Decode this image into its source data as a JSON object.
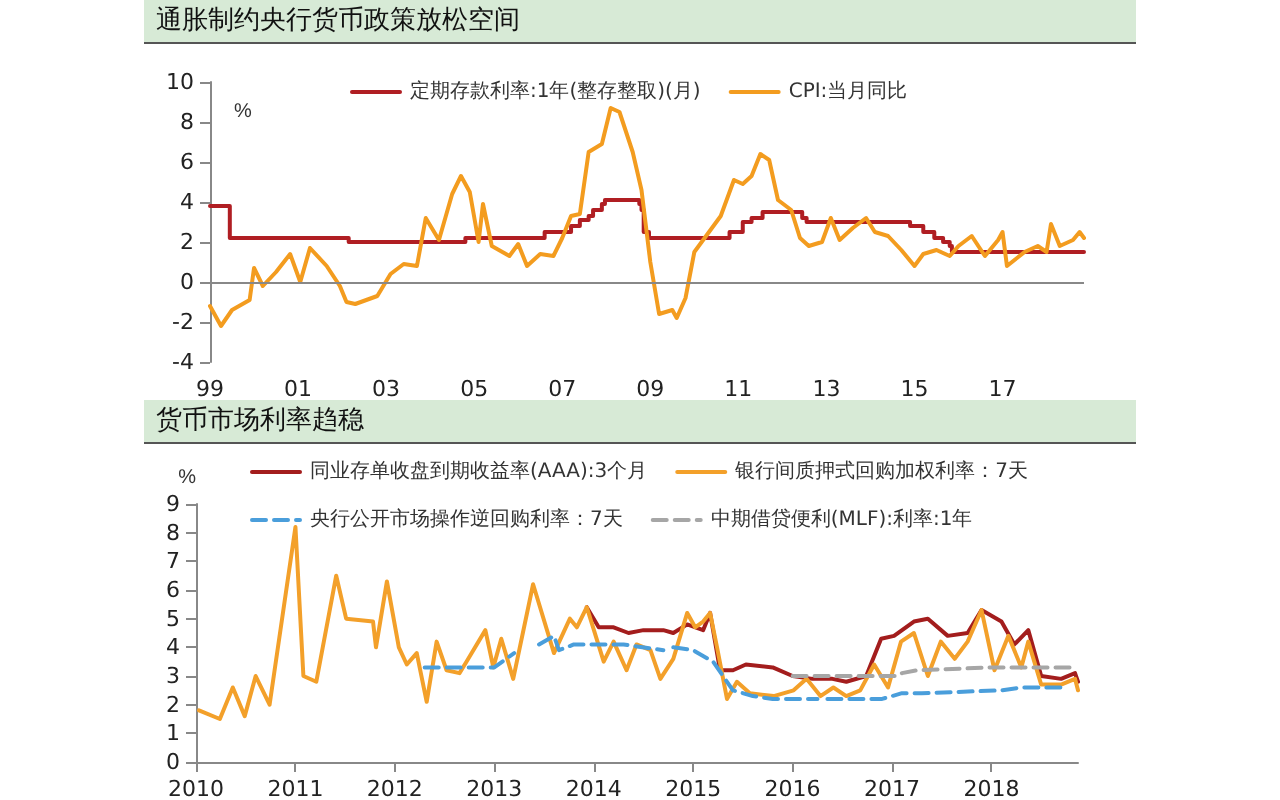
{
  "chart_data": [
    {
      "type": "line",
      "title": "通胀制约央行货币政策放松空间",
      "ylabel": "%",
      "xlim": [
        1999,
        2018.85
      ],
      "xticks": [
        {
          "value": 1999,
          "label": "99"
        },
        {
          "value": 2001,
          "label": "01"
        },
        {
          "value": 2003,
          "label": "03"
        },
        {
          "value": 2005,
          "label": "05"
        },
        {
          "value": 2007,
          "label": "07"
        },
        {
          "value": 2009,
          "label": "09"
        },
        {
          "value": 2011,
          "label": "11"
        },
        {
          "value": 2013,
          "label": "13"
        },
        {
          "value": 2015,
          "label": "15"
        },
        {
          "value": 2017,
          "label": "17"
        }
      ],
      "ylim": [
        -4,
        10
      ],
      "yticks": [
        -4,
        -2,
        0,
        2,
        4,
        6,
        8,
        10
      ],
      "ref_lines": [
        {
          "axis": "y",
          "value": 0,
          "color": "#888888"
        }
      ],
      "grid": false,
      "legend": "top",
      "marker": "none",
      "series": [
        {
          "name": "定期存款利率:1年(整存整取)(月)",
          "type": "step",
          "color": "#b01e23",
          "x": [
            1999.0,
            1999.45,
            2002.15,
            2004.8,
            2006.6,
            2007.2,
            2007.4,
            2007.6,
            2007.7,
            2007.9,
            2007.97,
            2008.75,
            2008.8,
            2008.85,
            2008.97,
            2010.8,
            2011.1,
            2011.3,
            2011.55,
            2012.45,
            2012.55,
            2014.9,
            2015.2,
            2015.45,
            2015.65,
            2015.8,
            2015.85,
            2018.85
          ],
          "values": [
            3.8,
            2.2,
            2.0,
            2.2,
            2.5,
            2.8,
            3.1,
            3.3,
            3.6,
            3.9,
            4.1,
            3.9,
            3.6,
            2.5,
            2.2,
            2.5,
            3.0,
            3.2,
            3.5,
            3.2,
            3.0,
            2.8,
            2.5,
            2.2,
            2.0,
            1.8,
            1.5,
            1.5
          ]
        },
        {
          "name": "CPI:当月同比",
          "color": "#f39c1f",
          "x": [
            1999.0,
            1999.25,
            1999.5,
            1999.9,
            2000.0,
            2000.2,
            2000.5,
            2000.82,
            2001.05,
            2001.27,
            2001.65,
            2001.95,
            2002.1,
            2002.3,
            2002.8,
            2003.1,
            2003.4,
            2003.7,
            2003.9,
            2004.2,
            2004.5,
            2004.7,
            2004.9,
            2005.1,
            2005.2,
            2005.4,
            2005.8,
            2006.0,
            2006.2,
            2006.5,
            2006.8,
            2007.0,
            2007.2,
            2007.4,
            2007.6,
            2007.9,
            2008.1,
            2008.3,
            2008.6,
            2008.8,
            2009.0,
            2009.2,
            2009.5,
            2009.6,
            2009.8,
            2010.0,
            2010.3,
            2010.6,
            2010.9,
            2011.1,
            2011.3,
            2011.5,
            2011.7,
            2011.9,
            2012.2,
            2012.4,
            2012.6,
            2012.9,
            2013.1,
            2013.3,
            2013.6,
            2013.9,
            2014.1,
            2014.4,
            2014.7,
            2015.0,
            2015.2,
            2015.5,
            2015.8,
            2016.0,
            2016.3,
            2016.6,
            2016.9,
            2017.0,
            2017.1,
            2017.5,
            2017.8,
            2018.0,
            2018.1,
            2018.3,
            2018.6,
            2018.75,
            2018.85
          ],
          "values": [
            -1.2,
            -2.2,
            -1.4,
            -0.9,
            0.7,
            -0.2,
            0.5,
            1.4,
            0,
            1.7,
            0.8,
            -0.2,
            -1.0,
            -1.1,
            -0.7,
            0.4,
            0.9,
            0.8,
            3.2,
            2.1,
            4.4,
            5.3,
            4.5,
            2.0,
            3.9,
            1.8,
            1.3,
            1.9,
            0.8,
            1.4,
            1.3,
            2.2,
            3.3,
            3.4,
            6.5,
            6.9,
            8.7,
            8.5,
            6.5,
            4.6,
            1.0,
            -1.6,
            -1.4,
            -1.8,
            -0.8,
            1.5,
            2.4,
            3.3,
            5.1,
            4.9,
            5.3,
            6.4,
            6.1,
            4.1,
            3.6,
            2.2,
            1.8,
            2.0,
            3.2,
            2.1,
            2.7,
            3.2,
            2.5,
            2.3,
            1.6,
            0.8,
            1.4,
            1.6,
            1.3,
            1.8,
            2.3,
            1.3,
            2.1,
            2.5,
            0.8,
            1.5,
            1.8,
            1.5,
            2.9,
            1.8,
            2.1,
            2.5,
            2.2
          ]
        }
      ]
    },
    {
      "type": "line",
      "title": "货币市场利率趋稳",
      "ylabel": "%",
      "xlim": [
        2010,
        2018.87
      ],
      "xticks": [
        2010,
        2011,
        2012,
        2013,
        2014,
        2015,
        2016,
        2017,
        2018
      ],
      "ylim": [
        0,
        9
      ],
      "yticks": [
        0,
        1,
        2,
        3,
        4,
        5,
        6,
        7,
        8,
        9
      ],
      "grid": false,
      "legend": "top",
      "marker": "none",
      "series": [
        {
          "name": "同业存单收盘到期收益率(AAA):3个月",
          "color": "#a31d1d",
          "x": [
            2013.93,
            2014.05,
            2014.2,
            2014.35,
            2014.5,
            2014.7,
            2014.8,
            2014.94,
            2015.1,
            2015.17,
            2015.27,
            2015.4,
            2015.53,
            2015.8,
            2016.0,
            2016.2,
            2016.4,
            2016.54,
            2016.74,
            2016.89,
            2017.02,
            2017.22,
            2017.36,
            2017.56,
            2017.76,
            2017.9,
            2018.1,
            2018.23,
            2018.37,
            2018.5,
            2018.7,
            2018.84,
            2018.87
          ],
          "values": [
            5.4,
            4.7,
            4.7,
            4.5,
            4.6,
            4.6,
            4.5,
            4.8,
            4.6,
            5.2,
            3.2,
            3.2,
            3.4,
            3.3,
            3.0,
            2.9,
            2.9,
            2.8,
            3.0,
            4.3,
            4.4,
            4.9,
            5.0,
            4.4,
            4.5,
            5.3,
            4.9,
            4.1,
            4.6,
            3.0,
            2.9,
            3.1,
            2.8
          ]
        },
        {
          "name": "银行间质押式回购加权利率：7天",
          "color": "#f3a02a",
          "x": [
            2010.03,
            2010.24,
            2010.37,
            2010.49,
            2010.6,
            2010.74,
            2011.0,
            2011.08,
            2011.21,
            2011.41,
            2011.51,
            2011.78,
            2011.81,
            2011.92,
            2012.04,
            2012.12,
            2012.22,
            2012.32,
            2012.42,
            2012.52,
            2012.65,
            2012.72,
            2012.91,
            2012.99,
            2013.07,
            2013.19,
            2013.39,
            2013.6,
            2013.76,
            2013.83,
            2013.93,
            2014.1,
            2014.2,
            2014.33,
            2014.43,
            2014.57,
            2014.67,
            2014.8,
            2014.94,
            2015.02,
            2015.1,
            2015.17,
            2015.24,
            2015.34,
            2015.44,
            2015.57,
            2015.81,
            2016.01,
            2016.14,
            2016.28,
            2016.41,
            2016.54,
            2016.68,
            2016.82,
            2016.96,
            2017.09,
            2017.22,
            2017.36,
            2017.49,
            2017.63,
            2017.76,
            2017.9,
            2018.03,
            2018.17,
            2018.3,
            2018.37,
            2018.5,
            2018.7,
            2018.84,
            2018.87
          ],
          "values": [
            1.8,
            1.5,
            2.6,
            1.6,
            3.0,
            2.0,
            8.2,
            3.0,
            2.8,
            6.5,
            5.0,
            4.9,
            4.0,
            6.3,
            4.0,
            3.4,
            3.8,
            2.1,
            4.2,
            3.2,
            3.1,
            3.5,
            4.6,
            3.3,
            4.3,
            2.9,
            6.2,
            3.8,
            5.0,
            4.7,
            5.4,
            3.5,
            4.2,
            3.2,
            4.1,
            3.9,
            2.9,
            3.6,
            5.2,
            4.7,
            4.9,
            5.2,
            4.0,
            2.2,
            2.8,
            2.4,
            2.3,
            2.5,
            2.9,
            2.3,
            2.6,
            2.3,
            2.5,
            3.4,
            2.6,
            4.2,
            4.5,
            3.0,
            4.2,
            3.6,
            4.2,
            5.3,
            3.2,
            4.4,
            3.3,
            4.2,
            2.7,
            2.7,
            2.9,
            2.5
          ]
        },
        {
          "name": "央行公开市场操作逆回购利率：7天",
          "color": "#4a9edb",
          "line_style": "dashed",
          "x": [
            2012.3,
            2013.0,
            2013.2,
            2013.3,
            2013.45,
            2013.6,
            2013.65,
            2013.8,
            2014.3,
            2014.7,
            2014.75,
            2014.8,
            2015.0,
            2015.2,
            2015.4,
            2015.6,
            2015.8,
            2016.25,
            2016.3,
            2016.35,
            2016.9,
            2017.1,
            2017.3,
            2018.1,
            2018.3,
            2018.75
          ],
          "values": [
            3.3,
            3.3,
            3.8,
            null,
            4.1,
            4.4,
            3.9,
            4.1,
            4.1,
            3.9,
            null,
            4.0,
            3.9,
            3.5,
            2.5,
            2.3,
            2.2,
            2.2,
            null,
            2.2,
            2.2,
            2.4,
            2.4,
            2.5,
            2.6,
            2.6
          ]
        },
        {
          "name": "中期借贷便利(MLF):利率:1年",
          "color": "#a6a6a6",
          "line_style": "dashed",
          "x": [
            2016.0,
            2017.05,
            2017.1,
            2017.25,
            2018.0,
            2018.85
          ],
          "values": [
            3.0,
            3.0,
            3.1,
            3.2,
            3.3,
            3.3
          ]
        }
      ]
    }
  ]
}
